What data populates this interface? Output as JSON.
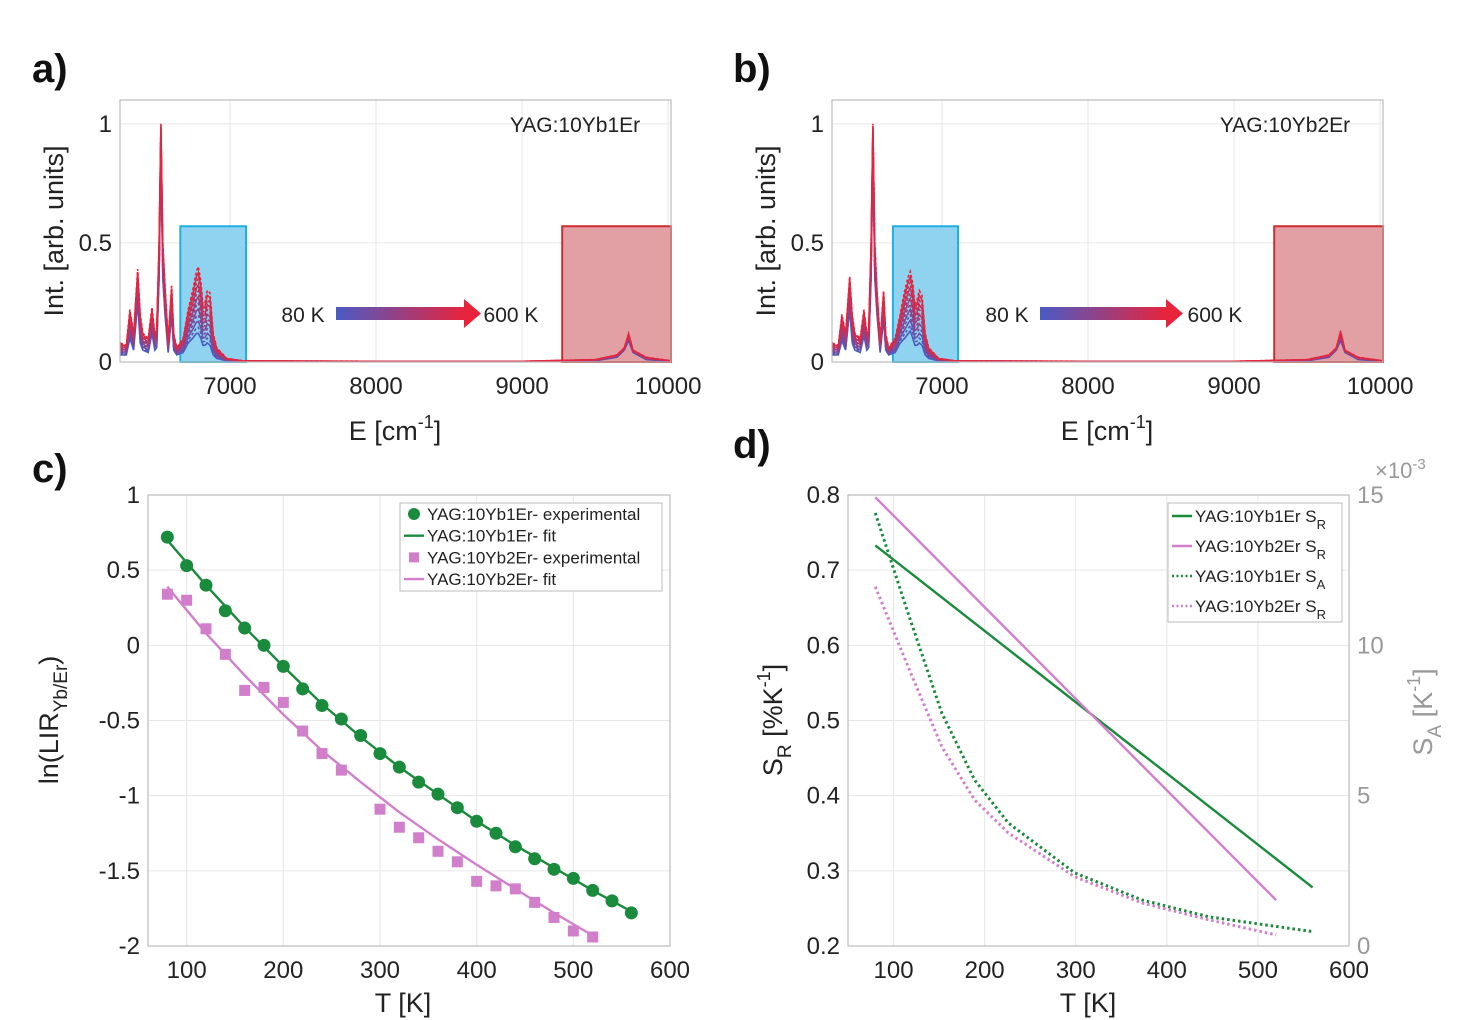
{
  "panel_labels": {
    "a": "a)",
    "b": "b)",
    "c": "c)",
    "d": "d)"
  },
  "colors": {
    "low_T": "#4a5bc4",
    "high_T": "#e8243c",
    "green": "#1a8a3c",
    "pink": "#d27fcb",
    "blue_region": "#8fd3f0",
    "blue_region_edge": "#1fb0e3",
    "red_region": "#e2a0a4",
    "red_region_edge": "#cf2e2e",
    "right_axis": "#999999"
  },
  "chart_data": [
    {
      "id": "a",
      "type": "line",
      "annotation": "YAG:10Yb1Er",
      "ylabel": "Int. [arb. units]",
      "xlabel": {
        "main": "E [cm",
        "sup": "-1",
        "tail": "]"
      },
      "xlim": [
        6247,
        10020
      ],
      "ylim": [
        0,
        1.1
      ],
      "xticks": [
        7000,
        8000,
        9000,
        10000
      ],
      "yticks": [
        0,
        0.5,
        1
      ],
      "grid": true,
      "temperature_arrow": {
        "from": "80 K",
        "to": "600 K"
      },
      "highlight_regions": [
        {
          "range": [
            6660,
            7110
          ],
          "top": 0.57,
          "color": "blue"
        },
        {
          "range": [
            9275,
            10020
          ],
          "top": 0.57,
          "color": "red"
        }
      ],
      "spectrum_80K": [
        [
          6247,
          0.03
        ],
        [
          6290,
          0.03
        ],
        [
          6315,
          0.1
        ],
        [
          6340,
          0.05
        ],
        [
          6368,
          0.25
        ],
        [
          6385,
          0.08
        ],
        [
          6404,
          0.05
        ],
        [
          6440,
          0.04
        ],
        [
          6466,
          0.12
        ],
        [
          6485,
          0.05
        ],
        [
          6498,
          0.06
        ],
        [
          6515,
          0.35
        ],
        [
          6527,
          0.9
        ],
        [
          6540,
          0.35
        ],
        [
          6555,
          0.2
        ],
        [
          6577,
          0.04
        ],
        [
          6600,
          0.2
        ],
        [
          6615,
          0.05
        ],
        [
          6635,
          0.03
        ],
        [
          6680,
          0.04
        ],
        [
          6714,
          0.08
        ],
        [
          6745,
          0.1
        ],
        [
          6770,
          0.12
        ],
        [
          6783,
          0.12
        ],
        [
          6800,
          0.1
        ],
        [
          6815,
          0.07
        ],
        [
          6829,
          0.07
        ],
        [
          6845,
          0.08
        ],
        [
          6863,
          0.07
        ],
        [
          6885,
          0.03
        ],
        [
          6909,
          0.015
        ],
        [
          6977,
          0.005
        ],
        [
          7090,
          0.002
        ],
        [
          8000,
          0.001
        ],
        [
          9000,
          0.001
        ],
        [
          9500,
          0.005
        ],
        [
          9650,
          0.02
        ],
        [
          9700,
          0.05
        ],
        [
          9730,
          0.09
        ],
        [
          9760,
          0.04
        ],
        [
          9850,
          0.01
        ],
        [
          10020,
          0.003
        ]
      ],
      "spectrum_600K": [
        [
          6247,
          0.08
        ],
        [
          6290,
          0.07
        ],
        [
          6315,
          0.22
        ],
        [
          6340,
          0.12
        ],
        [
          6368,
          0.39
        ],
        [
          6385,
          0.2
        ],
        [
          6404,
          0.12
        ],
        [
          6440,
          0.1
        ],
        [
          6466,
          0.23
        ],
        [
          6485,
          0.12
        ],
        [
          6498,
          0.14
        ],
        [
          6515,
          0.5
        ],
        [
          6527,
          1.0
        ],
        [
          6540,
          0.5
        ],
        [
          6555,
          0.32
        ],
        [
          6577,
          0.09
        ],
        [
          6600,
          0.32
        ],
        [
          6615,
          0.12
        ],
        [
          6635,
          0.06
        ],
        [
          6680,
          0.1
        ],
        [
          6714,
          0.22
        ],
        [
          6745,
          0.3
        ],
        [
          6770,
          0.38
        ],
        [
          6783,
          0.4
        ],
        [
          6800,
          0.34
        ],
        [
          6815,
          0.24
        ],
        [
          6829,
          0.25
        ],
        [
          6845,
          0.3
        ],
        [
          6863,
          0.29
        ],
        [
          6885,
          0.12
        ],
        [
          6909,
          0.06
        ],
        [
          6977,
          0.015
        ],
        [
          7090,
          0.005
        ],
        [
          8000,
          0.003
        ],
        [
          9000,
          0.003
        ],
        [
          9500,
          0.01
        ],
        [
          9650,
          0.03
        ],
        [
          9700,
          0.06
        ],
        [
          9730,
          0.12
        ],
        [
          9760,
          0.05
        ],
        [
          9850,
          0.02
        ],
        [
          10020,
          0.005
        ]
      ]
    },
    {
      "id": "b",
      "type": "line",
      "annotation": "YAG:10Yb2Er",
      "ylabel": "Int. [arb. units]",
      "xlabel": {
        "main": "E [cm",
        "sup": "-1",
        "tail": "]"
      },
      "xlim": [
        6247,
        10020
      ],
      "ylim": [
        0,
        1.1
      ],
      "xticks": [
        7000,
        8000,
        9000,
        10000
      ],
      "yticks": [
        0,
        0.5,
        1
      ],
      "grid": true,
      "temperature_arrow": {
        "from": "80 K",
        "to": "600 K"
      },
      "highlight_regions": [
        {
          "range": [
            6664,
            7110
          ],
          "top": 0.57,
          "color": "blue"
        },
        {
          "range": [
            9275,
            10020
          ],
          "top": 0.57,
          "color": "red"
        }
      ],
      "spectrum_80K": [
        [
          6247,
          0.03
        ],
        [
          6290,
          0.03
        ],
        [
          6315,
          0.09
        ],
        [
          6340,
          0.05
        ],
        [
          6368,
          0.22
        ],
        [
          6385,
          0.08
        ],
        [
          6404,
          0.05
        ],
        [
          6440,
          0.04
        ],
        [
          6466,
          0.11
        ],
        [
          6485,
          0.05
        ],
        [
          6498,
          0.06
        ],
        [
          6515,
          0.35
        ],
        [
          6527,
          0.9
        ],
        [
          6540,
          0.35
        ],
        [
          6555,
          0.2
        ],
        [
          6577,
          0.04
        ],
        [
          6600,
          0.18
        ],
        [
          6615,
          0.05
        ],
        [
          6635,
          0.03
        ],
        [
          6680,
          0.04
        ],
        [
          6714,
          0.08
        ],
        [
          6745,
          0.1
        ],
        [
          6770,
          0.12
        ],
        [
          6783,
          0.13
        ],
        [
          6800,
          0.1
        ],
        [
          6815,
          0.07
        ],
        [
          6829,
          0.07
        ],
        [
          6845,
          0.08
        ],
        [
          6863,
          0.07
        ],
        [
          6885,
          0.03
        ],
        [
          6909,
          0.015
        ],
        [
          6977,
          0.005
        ],
        [
          7090,
          0.002
        ],
        [
          8000,
          0.001
        ],
        [
          9000,
          0.001
        ],
        [
          9500,
          0.005
        ],
        [
          9650,
          0.02
        ],
        [
          9700,
          0.05
        ],
        [
          9730,
          0.09
        ],
        [
          9760,
          0.04
        ],
        [
          9850,
          0.01
        ],
        [
          10020,
          0.003
        ]
      ],
      "spectrum_600K": [
        [
          6247,
          0.08
        ],
        [
          6290,
          0.07
        ],
        [
          6315,
          0.2
        ],
        [
          6340,
          0.12
        ],
        [
          6368,
          0.36
        ],
        [
          6385,
          0.2
        ],
        [
          6404,
          0.12
        ],
        [
          6440,
          0.1
        ],
        [
          6466,
          0.22
        ],
        [
          6485,
          0.12
        ],
        [
          6498,
          0.14
        ],
        [
          6515,
          0.5
        ],
        [
          6527,
          1.0
        ],
        [
          6540,
          0.5
        ],
        [
          6555,
          0.3
        ],
        [
          6577,
          0.09
        ],
        [
          6600,
          0.3
        ],
        [
          6615,
          0.12
        ],
        [
          6635,
          0.06
        ],
        [
          6680,
          0.1
        ],
        [
          6714,
          0.2
        ],
        [
          6745,
          0.3
        ],
        [
          6770,
          0.36
        ],
        [
          6783,
          0.38
        ],
        [
          6800,
          0.33
        ],
        [
          6815,
          0.24
        ],
        [
          6829,
          0.26
        ],
        [
          6845,
          0.3
        ],
        [
          6863,
          0.28
        ],
        [
          6885,
          0.12
        ],
        [
          6909,
          0.06
        ],
        [
          6977,
          0.015
        ],
        [
          7090,
          0.005
        ],
        [
          8000,
          0.003
        ],
        [
          9000,
          0.003
        ],
        [
          9500,
          0.01
        ],
        [
          9650,
          0.03
        ],
        [
          9700,
          0.06
        ],
        [
          9730,
          0.13
        ],
        [
          9760,
          0.05
        ],
        [
          9850,
          0.02
        ],
        [
          10020,
          0.005
        ]
      ]
    },
    {
      "id": "c",
      "type": "scatter",
      "ylabel": {
        "main": "ln(LIR",
        "sub": "Yb/Er",
        "tail": ")"
      },
      "xlabel": "T [K]",
      "xlim": [
        60,
        600
      ],
      "ylim": [
        -2,
        1
      ],
      "xticks": [
        100,
        200,
        300,
        400,
        500,
        600
      ],
      "yticks": [
        -2,
        -1.5,
        -1,
        -0.5,
        0,
        0.5,
        1
      ],
      "grid": true,
      "legend_position": "top-right",
      "series": [
        {
          "name": "YAG:10Yb1Er- experimental",
          "kind": "marker-circle",
          "color": "green",
          "x": [
            80,
            100,
            120,
            140,
            160,
            180,
            200,
            220,
            240,
            260,
            280,
            300,
            320,
            340,
            360,
            380,
            400,
            420,
            440,
            460,
            480,
            500,
            520,
            540,
            560
          ],
          "y": [
            0.72,
            0.53,
            0.4,
            0.23,
            0.115,
            0.0,
            -0.14,
            -0.29,
            -0.4,
            -0.49,
            -0.6,
            -0.72,
            -0.81,
            -0.91,
            -0.99,
            -1.08,
            -1.17,
            -1.25,
            -1.34,
            -1.42,
            -1.49,
            -1.55,
            -1.63,
            -1.7,
            -1.78
          ]
        },
        {
          "name": "YAG:10Yb1Er- fit",
          "kind": "line",
          "color": "green",
          "x": [
            80,
            120,
            160,
            200,
            240,
            280,
            320,
            360,
            400,
            440,
            480,
            520,
            560
          ],
          "y": [
            0.7,
            0.4,
            0.12,
            -0.14,
            -0.39,
            -0.61,
            -0.81,
            -0.99,
            -1.17,
            -1.33,
            -1.48,
            -1.63,
            -1.77
          ]
        },
        {
          "name": "YAG:10Yb2Er- experimental",
          "kind": "marker-square",
          "color": "pink",
          "x": [
            80,
            100,
            120,
            140,
            160,
            180,
            200,
            220,
            240,
            260,
            300,
            320,
            340,
            360,
            380,
            400,
            420,
            440,
            460,
            480,
            500,
            520
          ],
          "y": [
            0.34,
            0.3,
            0.11,
            -0.06,
            -0.3,
            -0.28,
            -0.38,
            -0.57,
            -0.72,
            -0.83,
            -1.09,
            -1.21,
            -1.28,
            -1.37,
            -1.44,
            -1.57,
            -1.6,
            -1.62,
            -1.71,
            -1.81,
            -1.9,
            -1.94
          ]
        },
        {
          "name": "YAG:10Yb2Er- fit",
          "kind": "line",
          "color": "pink",
          "x": [
            80,
            120,
            160,
            200,
            240,
            280,
            320,
            360,
            400,
            440,
            480,
            520
          ],
          "y": [
            0.39,
            0.08,
            -0.2,
            -0.46,
            -0.7,
            -0.91,
            -1.11,
            -1.29,
            -1.46,
            -1.62,
            -1.78,
            -1.93
          ]
        }
      ]
    },
    {
      "id": "d",
      "type": "line",
      "ylabel": {
        "main": "S",
        "sub": "R",
        "mid": " [%K",
        "sup": "-1",
        "tail": "]"
      },
      "ylabel_right": {
        "main": "S",
        "sub": "A",
        "mid": " [K",
        "sup": "-1",
        "tail": "]"
      },
      "right_axis_multiplier": {
        "main": "×10",
        "sup": "-3"
      },
      "xlabel": "T [K]",
      "xlim": [
        50,
        600
      ],
      "ylim": [
        0.2,
        0.8
      ],
      "ylim_right": [
        0,
        15
      ],
      "xticks": [
        100,
        200,
        300,
        400,
        500,
        600
      ],
      "yticks": [
        0.2,
        0.3,
        0.4,
        0.5,
        0.6,
        0.7,
        0.8
      ],
      "yticks_right": [
        0,
        5,
        10,
        15
      ],
      "grid": true,
      "legend_position": "top-right",
      "series": [
        {
          "name": "YAG:10Yb1Er S",
          "name_sub": "R",
          "axis": "left",
          "style": "solid",
          "color": "green",
          "x": [
            80,
            560
          ],
          "y": [
            0.733,
            0.278
          ]
        },
        {
          "name": "YAG:10Yb2Er S",
          "name_sub": "R",
          "axis": "left",
          "style": "solid",
          "color": "pink",
          "x": [
            80,
            520
          ],
          "y": [
            0.797,
            0.261
          ]
        },
        {
          "name": "YAG:10Yb1Er S",
          "name_sub": "A",
          "axis": "right",
          "style": "dotted",
          "color": "green",
          "x": [
            80,
            116,
            153,
            189,
            226,
            299,
            373,
            446,
            560
          ],
          "y": [
            14.4,
            11.07,
            7.75,
            5.52,
            4.09,
            2.43,
            1.53,
            0.97,
            0.48
          ]
        },
        {
          "name": "YAG:10Yb2Er S",
          "name_sub": "R",
          "axis": "right",
          "style": "dotted",
          "color": "pink",
          "x": [
            80,
            116,
            153,
            189,
            226,
            299,
            373,
            446,
            520
          ],
          "y": [
            11.95,
            9.29,
            6.63,
            4.86,
            3.76,
            2.3,
            1.43,
            0.87,
            0.37
          ]
        }
      ]
    }
  ]
}
